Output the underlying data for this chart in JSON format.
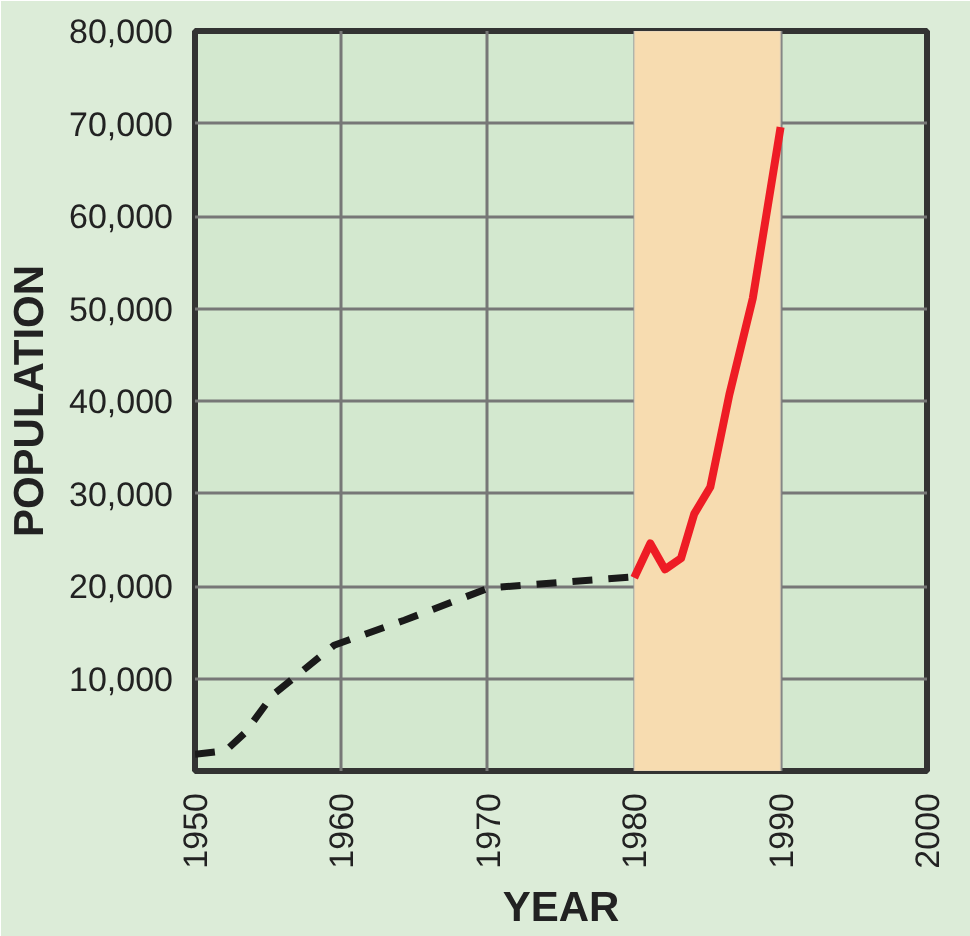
{
  "chart_data": {
    "type": "line",
    "xlabel": "YEAR",
    "ylabel": "POPULATION",
    "xlim": [
      1950,
      2000
    ],
    "ylim": [
      0,
      80000
    ],
    "xticks": [
      1950,
      1960,
      1970,
      1980,
      1990,
      2000
    ],
    "yticks": [
      {
        "value": 0,
        "label": null
      },
      {
        "value": 10000,
        "label": "10,000"
      },
      {
        "value": 20000,
        "label": "20,000"
      },
      {
        "value": 30000,
        "label": "30,000"
      },
      {
        "value": 40000,
        "label": "40,000"
      },
      {
        "value": 50000,
        "label": "50,000"
      },
      {
        "value": 60000,
        "label": "60,000"
      },
      {
        "value": 70000,
        "label": "70,000"
      },
      {
        "value": 80000,
        "label": "80,000"
      }
    ],
    "grid": true,
    "series": [
      {
        "color": "#1a1a1a",
        "line_style": "dashed",
        "x": [
          1950,
          1952.1,
          1953.4,
          1955.3,
          1959.5,
          1964.3,
          1970.1,
          1980
        ],
        "values": [
          1800,
          2200,
          4100,
          8200,
          13600,
          16300,
          19800,
          21000
        ]
      },
      {
        "color": "#ee1c25",
        "line_style": "solid",
        "x": [
          1980,
          1981.1,
          1982.1,
          1983.2,
          1984.1,
          1985.2,
          1986.5,
          1988.1,
          1990
        ],
        "values": [
          20900,
          24600,
          21800,
          23000,
          27800,
          30700,
          40700,
          51100,
          69600
        ]
      }
    ],
    "bands": [
      {
        "axis": "x",
        "from": 1980,
        "to": 1990,
        "color": "#f7dcb0"
      }
    ]
  }
}
